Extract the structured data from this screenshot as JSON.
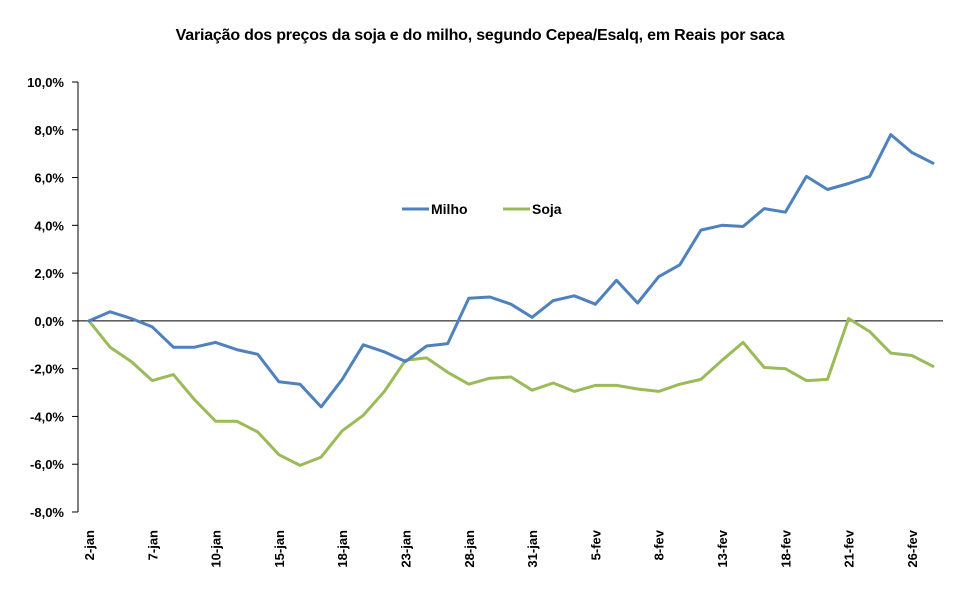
{
  "chart_data": {
    "type": "line",
    "title": "Variação dos preços da soja e do milho, segundo Cepea/Esalq, em Reais por saca",
    "xlabel": "",
    "ylabel": "",
    "ylim": [
      -8,
      10
    ],
    "yticks": [
      10,
      8,
      6,
      4,
      2,
      0,
      -2,
      -4,
      -6,
      -8
    ],
    "ytick_labels": [
      "10,0%",
      "8,0%",
      "6,0%",
      "4,0%",
      "2,0%",
      "0,0%",
      "-2,0%",
      "-4,0%",
      "-6,0%",
      "-8,0%"
    ],
    "n_points": 41,
    "xtick_indices": [
      0,
      3,
      6,
      9,
      12,
      15,
      18,
      21,
      24,
      27,
      30,
      33,
      36,
      39
    ],
    "xtick_labels": [
      "2-jan",
      "7-jan",
      "10-jan",
      "15-jan",
      "18-jan",
      "23-jan",
      "28-jan",
      "31-jan",
      "5-fev",
      "8-fev",
      "13-fev",
      "18-fev",
      "21-fev",
      "26-fev"
    ],
    "grid": false,
    "legend": "center",
    "series": [
      {
        "name": "Milho",
        "color": "#4F81BD",
        "values": [
          0,
          0.38,
          0.1,
          -0.25,
          -1.1,
          -1.1,
          -0.9,
          -1.2,
          -1.4,
          -2.55,
          -2.65,
          -3.6,
          -2.45,
          -1.0,
          -1.3,
          -1.7,
          -1.05,
          -0.95,
          0.95,
          1.0,
          0.7,
          0.15,
          0.85,
          1.05,
          0.7,
          1.7,
          0.75,
          1.85,
          2.35,
          3.8,
          4.0,
          3.95,
          4.7,
          4.55,
          6.05,
          5.5,
          5.75,
          6.05,
          7.8,
          7.05,
          6.6
        ]
      },
      {
        "name": "Soja",
        "color": "#9BBB59",
        "values": [
          0,
          -1.1,
          -1.7,
          -2.5,
          -2.25,
          -3.3,
          -4.2,
          -4.2,
          -4.65,
          -5.6,
          -6.05,
          -5.7,
          -4.6,
          -3.95,
          -2.95,
          -1.65,
          -1.55,
          -2.15,
          -2.65,
          -2.4,
          -2.35,
          -2.9,
          -2.6,
          -2.95,
          -2.7,
          -2.7,
          -2.85,
          -2.95,
          -2.65,
          -2.45,
          -1.65,
          -0.9,
          -1.95,
          -2.0,
          -2.5,
          -2.45,
          0.1,
          -0.45,
          -1.35,
          -1.45,
          -1.9
        ]
      }
    ]
  }
}
